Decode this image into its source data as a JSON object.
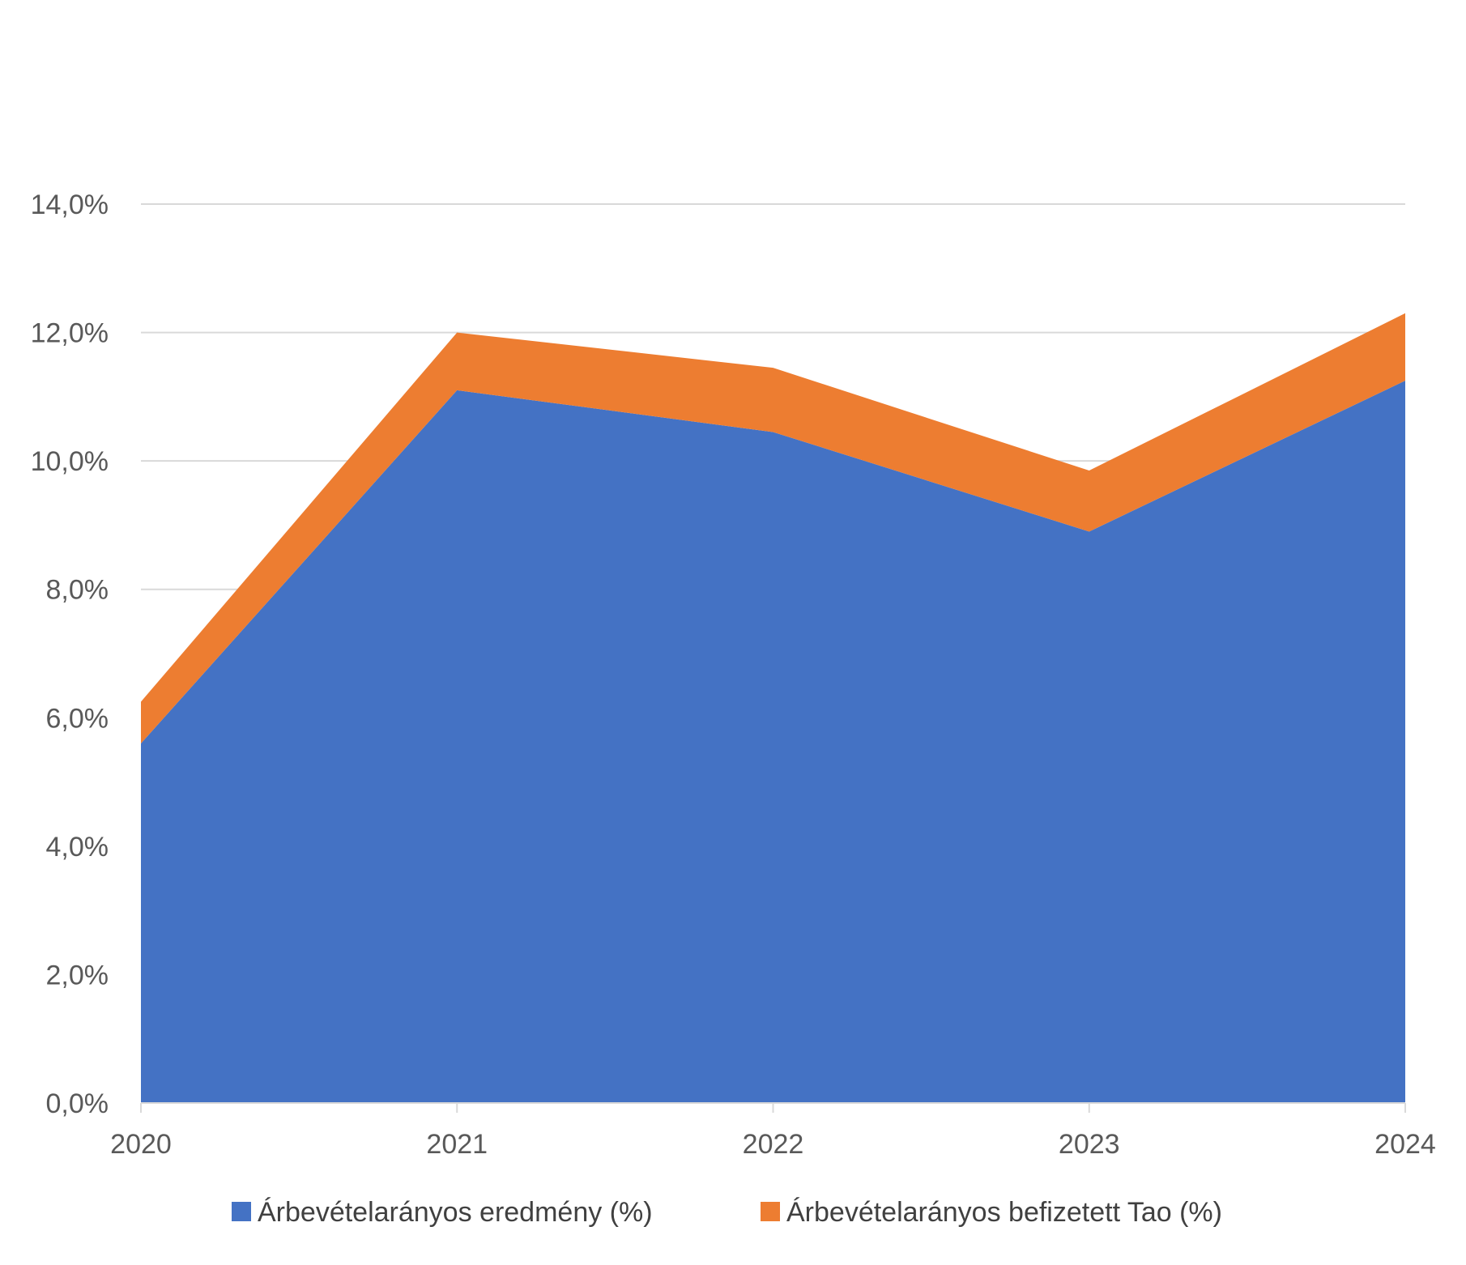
{
  "chart_data": {
    "type": "area",
    "stacked": true,
    "title": "",
    "xlabel": "",
    "ylabel": "",
    "categories": [
      "2020",
      "2021",
      "2022",
      "2023",
      "2024"
    ],
    "ylim": [
      0,
      14
    ],
    "yticks": [
      0,
      2,
      4,
      6,
      8,
      10,
      12,
      14
    ],
    "ytick_labels": [
      "0,0%",
      "2,0%",
      "4,0%",
      "6,0%",
      "8,0%",
      "10,0%",
      "12,0%",
      "14,0%"
    ],
    "grid": true,
    "legend_position": "bottom",
    "series": [
      {
        "name": "Árbevételarányos eredmény (%)",
        "values": [
          5.6,
          11.1,
          10.45,
          8.9,
          11.25
        ],
        "color": "#4472C4"
      },
      {
        "name": "Árbevételarányos befizetett Tao (%)",
        "values": [
          0.65,
          0.9,
          1.0,
          0.95,
          1.05
        ],
        "color": "#ED7D31"
      }
    ]
  }
}
